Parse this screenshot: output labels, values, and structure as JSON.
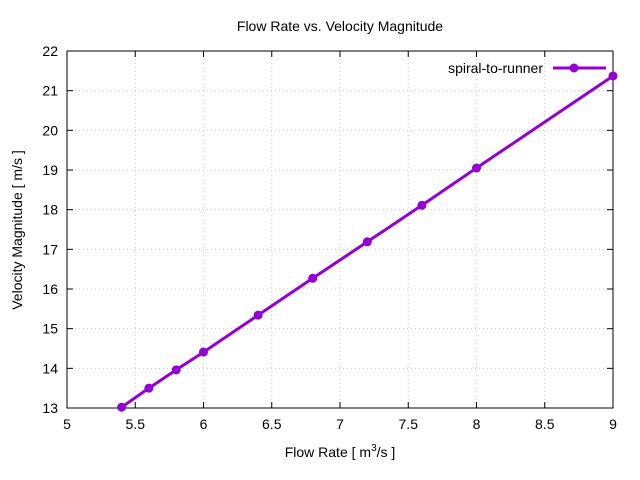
{
  "chart_data": {
    "type": "line",
    "title": "Flow Rate vs. Velocity Magnitude",
    "xlabel_main": "Flow Rate [ m",
    "xlabel_sup": "3",
    "xlabel_tail": "/s ]",
    "ylabel": "Velocity Magnitude [ m/s ]",
    "xlim": [
      5,
      9
    ],
    "ylim": [
      13,
      22
    ],
    "xticks": [
      5,
      5.5,
      6,
      6.5,
      7,
      7.5,
      8,
      8.5,
      9
    ],
    "xtick_labels": [
      "5",
      "5.5",
      "6",
      "6.5",
      "7",
      "7.5",
      "8",
      "8.5",
      "9"
    ],
    "yticks": [
      13,
      14,
      15,
      16,
      17,
      18,
      19,
      20,
      21,
      22
    ],
    "ytick_labels": [
      "13",
      "14",
      "15",
      "16",
      "17",
      "18",
      "19",
      "20",
      "21",
      "22"
    ],
    "grid": true,
    "legend_position": "top-right",
    "series": [
      {
        "name": "spiral-to-runner",
        "color": "#9400d3",
        "x": [
          5.4,
          5.6,
          5.8,
          6.0,
          6.4,
          6.8,
          7.2,
          7.6,
          8.0,
          9.0
        ],
        "y": [
          13.02,
          13.5,
          13.96,
          14.41,
          15.34,
          16.27,
          17.19,
          18.11,
          19.05,
          21.37
        ]
      }
    ]
  }
}
